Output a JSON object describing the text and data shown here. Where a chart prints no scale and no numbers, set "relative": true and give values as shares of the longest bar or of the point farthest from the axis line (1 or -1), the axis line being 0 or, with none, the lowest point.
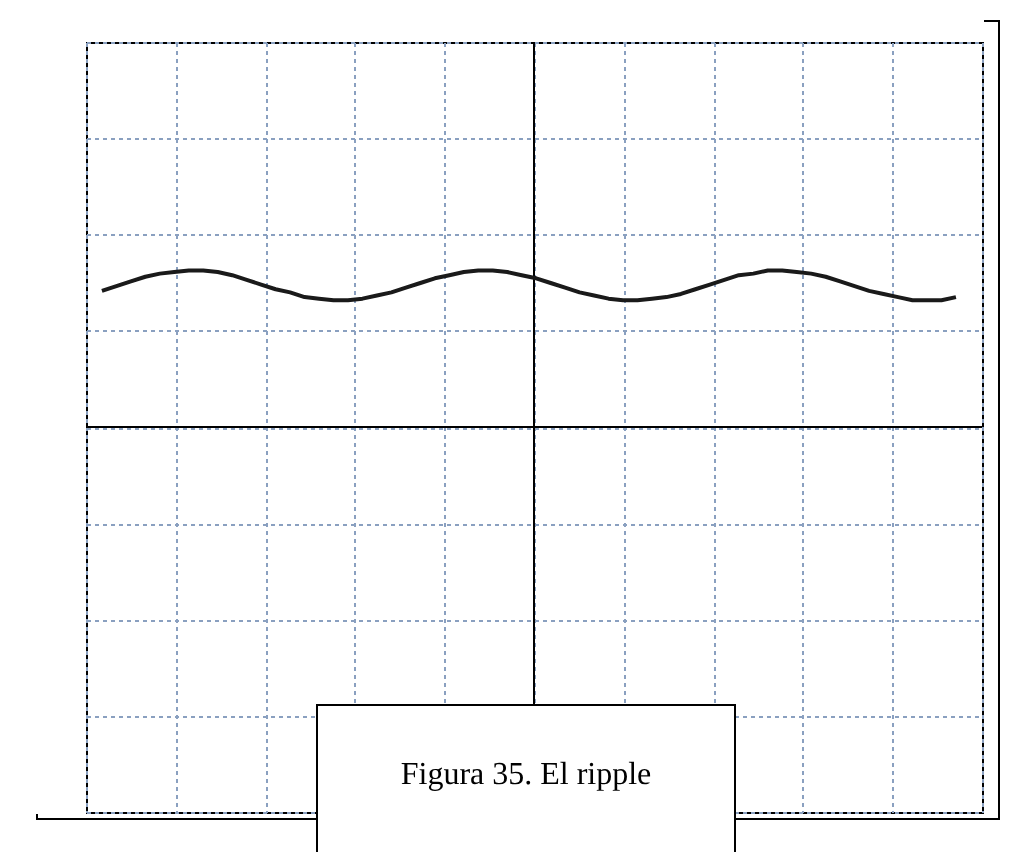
{
  "chart_data": {
    "type": "line",
    "relative": true,
    "grid": true,
    "marker": "none",
    "line_style": "solid",
    "annotations": [
      "Figura 35. El ripple"
    ],
    "categories": [
      null,
      null,
      null,
      null,
      null,
      null,
      null,
      null,
      null,
      null,
      null,
      null,
      null,
      null,
      null,
      null,
      null,
      null,
      null,
      null,
      null,
      null,
      null,
      null,
      null,
      null,
      null,
      null,
      null,
      null,
      null,
      null,
      null,
      null,
      null,
      null,
      null,
      null,
      null,
      null,
      null,
      null,
      null,
      null,
      null,
      null,
      null,
      null,
      null,
      null,
      null,
      null,
      null,
      null,
      null,
      null,
      null,
      null,
      null,
      null
    ],
    "series": [
      {
        "color": "#1a1a1a",
        "values": [
          0.87,
          0.9,
          0.93,
          0.96,
          0.98,
          0.99,
          1.0,
          1.0,
          0.99,
          0.97,
          0.94,
          0.91,
          0.88,
          0.86,
          0.83,
          0.82,
          0.81,
          0.81,
          0.82,
          0.84,
          0.86,
          0.89,
          0.92,
          0.95,
          0.97,
          0.99,
          1.0,
          1.0,
          0.99,
          0.97,
          0.95,
          0.92,
          0.89,
          0.86,
          0.84,
          0.82,
          0.81,
          0.81,
          0.82,
          0.83,
          0.85,
          0.88,
          0.91,
          0.94,
          0.97,
          0.98,
          1.0,
          1.0,
          0.99,
          0.98,
          0.96,
          0.93,
          0.9,
          0.87,
          0.85,
          0.83,
          0.81,
          0.81,
          0.81,
          0.83
        ]
      }
    ]
  }
}
